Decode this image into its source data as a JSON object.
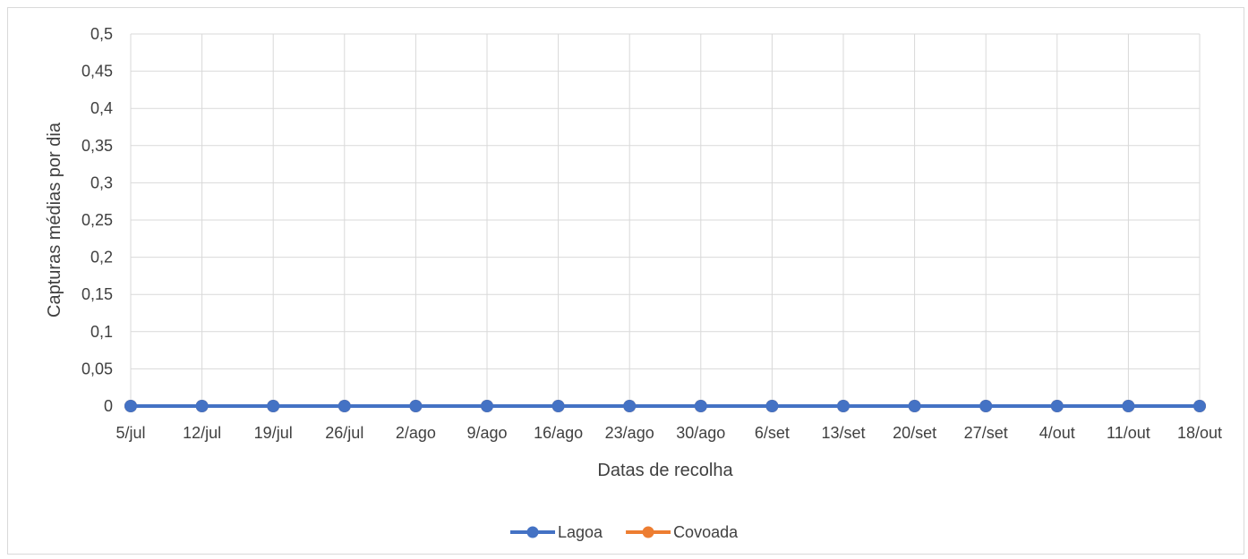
{
  "chart_data": {
    "type": "line",
    "title": "",
    "xlabel": "Datas de recolha",
    "ylabel": "Capturas médias por dia",
    "categories": [
      "5/jul",
      "12/jul",
      "19/jul",
      "26/jul",
      "2/ago",
      "9/ago",
      "16/ago",
      "23/ago",
      "30/ago",
      "6/set",
      "13/set",
      "20/set",
      "27/set",
      "4/out",
      "11/out",
      "18/out"
    ],
    "yticks": [
      "0",
      "0,05",
      "0,1",
      "0,15",
      "0,2",
      "0,25",
      "0,3",
      "0,35",
      "0,4",
      "0,45",
      "0,5"
    ],
    "ylim": [
      0,
      0.5
    ],
    "grid": true,
    "legend_position": "bottom",
    "series": [
      {
        "name": "Lagoa",
        "color": "#4472C4",
        "marker": "circle",
        "values": [
          0,
          0,
          0,
          0,
          0,
          0,
          0,
          0,
          0,
          0,
          0,
          0,
          0,
          0,
          0,
          0
        ]
      },
      {
        "name": "Covoada",
        "color": "#ED7D31",
        "marker": "circle",
        "values": [
          0,
          0,
          0,
          0,
          0,
          0,
          0,
          0,
          0,
          0,
          0,
          0,
          0,
          0,
          0,
          0
        ]
      }
    ]
  }
}
